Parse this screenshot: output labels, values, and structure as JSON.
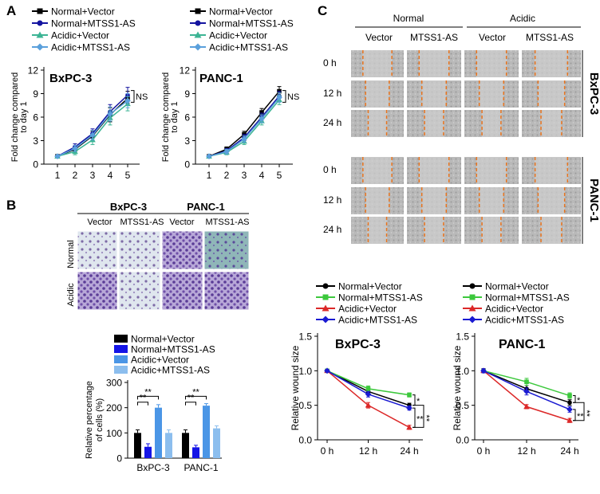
{
  "panels": {
    "a": "A",
    "b": "B",
    "c": "C"
  },
  "legend_lines": {
    "normal_vector": "Normal+Vector",
    "normal_mtss1": "Normal+MTSS1-AS",
    "acidic_vector": "Acidic+Vector",
    "acidic_mtss1": "Acidic+MTSS1-AS"
  },
  "colors": {
    "black": "#000000",
    "navy": "#1414a0",
    "teal": "#3cb494",
    "lightblue": "#5aa0dc",
    "green": "#3cc83c",
    "red": "#dc2828",
    "blue": "#1a1ad2",
    "bar_black": "#000000",
    "bar_blue": "#1414e6",
    "bar_mid": "#4b96e6",
    "bar_light": "#8cbeee"
  },
  "chart_data": [
    {
      "id": "growth-bxpc3",
      "type": "line",
      "title": "BxPC-3",
      "xlabel": "",
      "ylabel": "Fold change compared to day 1",
      "ylabel_lines": [
        "Fold change compared",
        "to day 1"
      ],
      "categories": [
        "1",
        "2",
        "3",
        "4",
        "5"
      ],
      "yticks": [
        "0",
        "3",
        "6",
        "9",
        "12"
      ],
      "ylim": [
        0,
        12
      ],
      "annotation": "NS",
      "series": [
        {
          "name": "Normal+Vector",
          "color_key": "black",
          "marker": "square",
          "values": [
            1.0,
            1.9,
            3.6,
            6.3,
            8.4
          ],
          "err": [
            0.1,
            0.4,
            0.6,
            0.9,
            0.9
          ]
        },
        {
          "name": "Normal+MTSS1-AS",
          "color_key": "navy",
          "marker": "circle",
          "values": [
            1.0,
            2.2,
            3.9,
            6.7,
            8.8
          ],
          "err": [
            0.1,
            0.4,
            0.6,
            0.9,
            1.0
          ]
        },
        {
          "name": "Acidic+Vector",
          "color_key": "teal",
          "marker": "triangle",
          "values": [
            1.0,
            1.6,
            3.1,
            5.9,
            7.7
          ],
          "err": [
            0.1,
            0.4,
            0.6,
            0.9,
            0.9
          ]
        },
        {
          "name": "Acidic+MTSS1-AS",
          "color_key": "lightblue",
          "marker": "diamond",
          "values": [
            1.0,
            2.0,
            3.7,
            6.4,
            8.1
          ],
          "err": [
            0.1,
            0.4,
            0.6,
            0.9,
            0.9
          ]
        }
      ]
    },
    {
      "id": "growth-panc1",
      "type": "line",
      "title": "PANC-1",
      "xlabel": "",
      "ylabel": "Fold change compared to day 1",
      "ylabel_lines": [
        "Fold change compared",
        "to day 1"
      ],
      "categories": [
        "1",
        "2",
        "3",
        "4",
        "5"
      ],
      "yticks": [
        "0",
        "3",
        "6",
        "9",
        "12"
      ],
      "ylim": [
        0,
        12
      ],
      "annotation": "NS",
      "series": [
        {
          "name": "Normal+Vector",
          "color_key": "black",
          "marker": "square",
          "values": [
            1.0,
            1.9,
            3.8,
            6.6,
            9.3
          ],
          "err": [
            0.1,
            0.3,
            0.4,
            0.5,
            0.6
          ]
        },
        {
          "name": "Normal+MTSS1-AS",
          "color_key": "navy",
          "marker": "circle",
          "values": [
            1.0,
            1.7,
            3.4,
            6.0,
            8.7
          ],
          "err": [
            0.1,
            0.3,
            0.4,
            0.5,
            0.6
          ]
        },
        {
          "name": "Acidic+Vector",
          "color_key": "teal",
          "marker": "triangle",
          "values": [
            1.0,
            1.5,
            2.9,
            5.5,
            8.2
          ],
          "err": [
            0.1,
            0.3,
            0.4,
            0.5,
            0.6
          ]
        },
        {
          "name": "Acidic+MTSS1-AS",
          "color_key": "lightblue",
          "marker": "diamond",
          "values": [
            1.0,
            1.6,
            3.2,
            5.8,
            8.5
          ],
          "err": [
            0.1,
            0.3,
            0.4,
            0.5,
            0.6
          ]
        }
      ]
    },
    {
      "id": "invasion-bar",
      "type": "bar",
      "title": "",
      "xlabel": "",
      "ylabel": "Relative percentage of cells (%)",
      "ylabel_lines": [
        "Relative percentage",
        "of cells (%)"
      ],
      "categories": [
        "BxPC-3",
        "PANC-1"
      ],
      "yticks": [
        "0",
        "100",
        "200",
        "300"
      ],
      "ylim": [
        0,
        300
      ],
      "series": [
        {
          "name": "Normal+Vector",
          "color_key": "bar_black",
          "values": [
            100,
            100
          ],
          "err": [
            12,
            12
          ]
        },
        {
          "name": "Normal+MTSS1-AS",
          "color_key": "bar_blue",
          "values": [
            45,
            43
          ],
          "err": [
            12,
            8
          ]
        },
        {
          "name": "Acidic+Vector",
          "color_key": "bar_mid",
          "values": [
            200,
            208
          ],
          "err": [
            12,
            8
          ]
        },
        {
          "name": "Acidic+MTSS1-AS",
          "color_key": "bar_light",
          "values": [
            100,
            118
          ],
          "err": [
            12,
            10
          ]
        }
      ],
      "significance": [
        "**",
        "**",
        "**",
        "**"
      ]
    },
    {
      "id": "wound-bxpc3",
      "type": "line",
      "title": "BxPC-3",
      "xlabel": "",
      "ylabel": "Relative wound size",
      "categories": [
        "0 h",
        "12 h",
        "24 h"
      ],
      "yticks": [
        "0.0",
        "0.5",
        "1.0",
        "1.5"
      ],
      "ylim": [
        0,
        1.5
      ],
      "series": [
        {
          "name": "Normal+Vector",
          "color_key": "black",
          "marker": "circle",
          "values": [
            1.0,
            0.7,
            0.5
          ],
          "err": [
            0.02,
            0.04,
            0.03
          ]
        },
        {
          "name": "Normal+MTSS1-AS",
          "color_key": "green",
          "marker": "square",
          "values": [
            1.0,
            0.74,
            0.65
          ],
          "err": [
            0.02,
            0.04,
            0.03
          ]
        },
        {
          "name": "Acidic+Vector",
          "color_key": "red",
          "marker": "triangle",
          "values": [
            1.0,
            0.5,
            0.18
          ],
          "err": [
            0.02,
            0.04,
            0.03
          ]
        },
        {
          "name": "Acidic+MTSS1-AS",
          "color_key": "blue",
          "marker": "diamond",
          "values": [
            1.0,
            0.66,
            0.46
          ],
          "err": [
            0.02,
            0.04,
            0.03
          ]
        }
      ],
      "significance": [
        "*",
        "**",
        "**"
      ]
    },
    {
      "id": "wound-panc1",
      "type": "line",
      "title": "PANC-1",
      "xlabel": "",
      "ylabel": "Relative wound size",
      "categories": [
        "0 h",
        "12 h",
        "24 h"
      ],
      "yticks": [
        "0.0",
        "0.5",
        "1.0",
        "1.5"
      ],
      "ylim": [
        0,
        1.5
      ],
      "series": [
        {
          "name": "Normal+Vector",
          "color_key": "black",
          "marker": "circle",
          "values": [
            1.0,
            0.74,
            0.54
          ],
          "err": [
            0.03,
            0.05,
            0.04
          ]
        },
        {
          "name": "Normal+MTSS1-AS",
          "color_key": "green",
          "marker": "square",
          "values": [
            1.0,
            0.84,
            0.64
          ],
          "err": [
            0.03,
            0.05,
            0.04
          ]
        },
        {
          "name": "Acidic+Vector",
          "color_key": "red",
          "marker": "triangle",
          "values": [
            1.0,
            0.48,
            0.28
          ],
          "err": [
            0.03,
            0.03,
            0.03
          ]
        },
        {
          "name": "Acidic+MTSS1-AS",
          "color_key": "blue",
          "marker": "diamond",
          "values": [
            1.0,
            0.7,
            0.44
          ],
          "err": [
            0.03,
            0.05,
            0.04
          ]
        }
      ],
      "significance": [
        "*",
        "**",
        "**"
      ]
    }
  ],
  "panel_b_images": {
    "cell_lines": [
      "BxPC-3",
      "PANC-1"
    ],
    "columns": [
      "Vector",
      "MTSS1-AS",
      "Vector",
      "MTSS1-AS"
    ],
    "rows": [
      "Normal",
      "Acidic"
    ]
  },
  "panel_c_images": {
    "conditions": [
      "Normal",
      "Acidic"
    ],
    "columns": [
      "Vector",
      "MTSS1-AS",
      "Vector",
      "MTSS1-AS"
    ],
    "timepoints": [
      "0 h",
      "12 h",
      "24 h"
    ],
    "cell_lines": [
      "BxPC-3",
      "PANC-1"
    ]
  }
}
